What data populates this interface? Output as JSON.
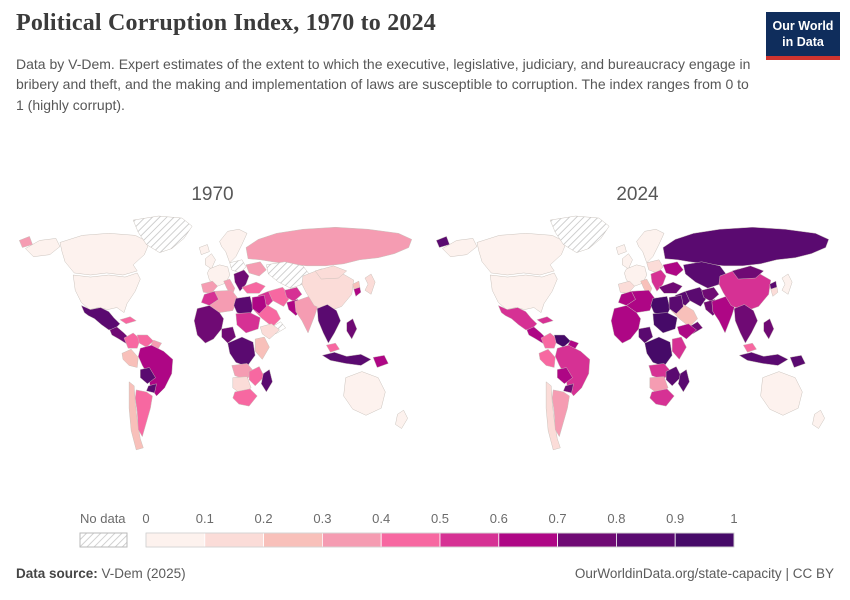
{
  "header": {
    "title": "Political Corruption Index, 1970 to 2024",
    "subtitle": "Data by V-Dem. Expert estimates of the extent to which the executive, legislative, judiciary, and bureaucracy engage in bribery and theft, and the making and implementation of laws are susceptible to corruption. The index ranges from 0 to 1 (highly corrupt).",
    "logo_line1": "Our World",
    "logo_line2": "in Data",
    "logo_bg": "#0f2d5c",
    "logo_accent": "#cf342f"
  },
  "chart_data": {
    "type": "heatmap",
    "subtype": "choropleth-world-map-pair",
    "metric": "Political Corruption Index",
    "scale_min": 0,
    "scale_max": 1,
    "years": [
      "1970",
      "2024"
    ],
    "legend": {
      "no_data_label": "No data",
      "tick_labels": [
        "0",
        "0.1",
        "0.2",
        "0.3",
        "0.4",
        "0.5",
        "0.6",
        "0.7",
        "0.8",
        "0.9",
        "1"
      ],
      "colors": [
        "#fdf2ee",
        "#fbdcd8",
        "#f8c0ba",
        "#f59cb2",
        "#f768a1",
        "#d63194",
        "#ae0685",
        "#6f0a74",
        "#5a0a70",
        "#460a68"
      ],
      "hatch_line_color": "#c9c9c9",
      "border_color": "#c2bab4"
    },
    "regions": [
      {
        "id": "canada",
        "label": "Canada",
        "values": {
          "1970": 0.05,
          "2024": 0.05
        }
      },
      {
        "id": "usa",
        "label": "United States",
        "values": {
          "1970": 0.07,
          "2024": 0.08
        }
      },
      {
        "id": "greenland",
        "label": "Greenland",
        "values": {
          "1970": null,
          "2024": null
        }
      },
      {
        "id": "chukotka",
        "label": "Russia (Chukotka)",
        "values": {
          "1970": 0.38,
          "2024": 0.85
        }
      },
      {
        "id": "iceland",
        "label": "Iceland",
        "values": {
          "1970": 0.03,
          "2024": 0.03
        }
      },
      {
        "id": "mexico",
        "label": "Mexico",
        "values": {
          "1970": 0.85,
          "2024": 0.55
        }
      },
      {
        "id": "central_america",
        "label": "Central America",
        "values": {
          "1970": 0.78,
          "2024": 0.68
        }
      },
      {
        "id": "cuba",
        "label": "Cuba & Caribbean",
        "values": {
          "1970": 0.45,
          "2024": 0.5
        }
      },
      {
        "id": "colombia",
        "label": "Colombia",
        "values": {
          "1970": 0.48,
          "2024": 0.45
        }
      },
      {
        "id": "venezuela",
        "label": "Venezuela",
        "values": {
          "1970": 0.45,
          "2024": 0.92
        }
      },
      {
        "id": "guyanas",
        "label": "Guyanas",
        "values": {
          "1970": 0.35,
          "2024": 0.65
        }
      },
      {
        "id": "peru",
        "label": "Peru & Ecuador",
        "values": {
          "1970": 0.25,
          "2024": 0.48
        }
      },
      {
        "id": "brazil",
        "label": "Brazil",
        "values": {
          "1970": 0.65,
          "2024": 0.52
        }
      },
      {
        "id": "chile",
        "label": "Chile",
        "values": {
          "1970": 0.22,
          "2024": 0.12
        }
      },
      {
        "id": "argentina",
        "label": "Argentina",
        "values": {
          "1970": 0.48,
          "2024": 0.32
        }
      },
      {
        "id": "bolivia",
        "label": "Bolivia",
        "values": {
          "1970": 0.85,
          "2024": 0.62
        }
      },
      {
        "id": "paraguay",
        "label": "Paraguay",
        "values": {
          "1970": 0.82,
          "2024": 0.78
        }
      },
      {
        "id": "uk",
        "label": "United Kingdom",
        "values": {
          "1970": 0.04,
          "2024": 0.05
        }
      },
      {
        "id": "scandinavia",
        "label": "Scandinavia",
        "values": {
          "1970": 0.02,
          "2024": 0.02
        }
      },
      {
        "id": "west_europe",
        "label": "Western Europe",
        "values": {
          "1970": 0.06,
          "2024": 0.06
        }
      },
      {
        "id": "iberia",
        "label": "Spain & Portugal",
        "values": {
          "1970": 0.38,
          "2024": 0.12
        }
      },
      {
        "id": "italy",
        "label": "Italy",
        "values": {
          "1970": 0.32,
          "2024": 0.22
        }
      },
      {
        "id": "central_europe",
        "label": "Central Europe",
        "values": {
          "1970": null,
          "2024": 0.15
        }
      },
      {
        "id": "balkans",
        "label": "Balkans",
        "values": {
          "1970": 0.72,
          "2024": 0.55
        }
      },
      {
        "id": "ukraine",
        "label": "Ukraine & Belarus",
        "values": {
          "1970": 0.35,
          "2024": 0.62
        }
      },
      {
        "id": "russia",
        "label": "Russia",
        "values": {
          "1970": 0.38,
          "2024": 0.85
        }
      },
      {
        "id": "central_asia",
        "label": "Central Asia",
        "values": {
          "1970": null,
          "2024": 0.82
        }
      },
      {
        "id": "turkey",
        "label": "Turkey",
        "values": {
          "1970": 0.42,
          "2024": 0.78
        }
      },
      {
        "id": "levant",
        "label": "Levant & Iraq",
        "values": {
          "1970": 0.58,
          "2024": 0.85
        }
      },
      {
        "id": "saudi",
        "label": "Saudi Arabia",
        "values": {
          "1970": 0.42,
          "2024": 0.28
        }
      },
      {
        "id": "yemen",
        "label": "Yemen & Oman",
        "values": {
          "1970": null,
          "2024": 0.72
        }
      },
      {
        "id": "iran",
        "label": "Iran",
        "values": {
          "1970": 0.42,
          "2024": 0.8
        }
      },
      {
        "id": "afghanistan",
        "label": "Afghanistan",
        "values": {
          "1970": 0.55,
          "2024": 0.78
        }
      },
      {
        "id": "pakistan",
        "label": "Pakistan",
        "values": {
          "1970": 0.62,
          "2024": 0.7
        }
      },
      {
        "id": "india",
        "label": "India",
        "values": {
          "1970": 0.38,
          "2024": 0.65
        }
      },
      {
        "id": "china",
        "label": "China",
        "values": {
          "1970": 0.18,
          "2024": 0.57
        }
      },
      {
        "id": "mongolia",
        "label": "Mongolia",
        "values": {
          "1970": 0.18,
          "2024": 0.72
        }
      },
      {
        "id": "north_korea",
        "label": "North Korea",
        "values": {
          "1970": 0.2,
          "2024": 0.82
        }
      },
      {
        "id": "south_korea",
        "label": "South Korea",
        "values": {
          "1970": 0.6,
          "2024": 0.1
        }
      },
      {
        "id": "japan",
        "label": "Japan",
        "values": {
          "1970": 0.15,
          "2024": 0.05
        }
      },
      {
        "id": "se_asia",
        "label": "Mainland Southeast Asia",
        "values": {
          "1970": 0.85,
          "2024": 0.78
        }
      },
      {
        "id": "malaysia",
        "label": "Malaysia",
        "values": {
          "1970": 0.45,
          "2024": 0.45
        }
      },
      {
        "id": "indonesia",
        "label": "Indonesia",
        "values": {
          "1970": 0.85,
          "2024": 0.8
        }
      },
      {
        "id": "philippines",
        "label": "Philippines",
        "values": {
          "1970": 0.75,
          "2024": 0.75
        }
      },
      {
        "id": "png",
        "label": "Papua New Guinea",
        "values": {
          "1970": 0.62,
          "2024": 0.85
        }
      },
      {
        "id": "australia",
        "label": "Australia",
        "values": {
          "1970": 0.05,
          "2024": 0.06
        }
      },
      {
        "id": "new_zealand",
        "label": "New Zealand",
        "values": {
          "1970": 0.02,
          "2024": 0.02
        }
      },
      {
        "id": "morocco",
        "label": "Morocco",
        "values": {
          "1970": 0.55,
          "2024": 0.6
        }
      },
      {
        "id": "algeria",
        "label": "Algeria & Tunisia",
        "values": {
          "1970": 0.38,
          "2024": 0.65
        }
      },
      {
        "id": "libya",
        "label": "Libya",
        "values": {
          "1970": 0.82,
          "2024": 0.9
        }
      },
      {
        "id": "egypt",
        "label": "Egypt",
        "values": {
          "1970": 0.68,
          "2024": 0.85
        }
      },
      {
        "id": "west_africa",
        "label": "West Africa",
        "values": {
          "1970": 0.78,
          "2024": 0.62
        }
      },
      {
        "id": "nigeria",
        "label": "Nigeria",
        "values": {
          "1970": 0.72,
          "2024": 0.85
        }
      },
      {
        "id": "sahel",
        "label": "Chad & Sudan",
        "values": {
          "1970": 0.58,
          "2024": 0.9
        }
      },
      {
        "id": "horn",
        "label": "Horn of Africa",
        "values": {
          "1970": 0.12,
          "2024": 0.62
        }
      },
      {
        "id": "central_africa",
        "label": "Central Africa",
        "values": {
          "1970": 0.85,
          "2024": 0.9
        }
      },
      {
        "id": "east_africa",
        "label": "East Africa",
        "values": {
          "1970": 0.25,
          "2024": 0.55
        }
      },
      {
        "id": "angola",
        "label": "Angola & Zambia",
        "values": {
          "1970": 0.32,
          "2024": 0.52
        }
      },
      {
        "id": "zimbabwe",
        "label": "Zimbabwe & Mozambique",
        "values": {
          "1970": 0.42,
          "2024": 0.8
        }
      },
      {
        "id": "namibia",
        "label": "Namibia & Botswana",
        "values": {
          "1970": 0.15,
          "2024": 0.35
        }
      },
      {
        "id": "south_africa",
        "label": "South Africa",
        "values": {
          "1970": 0.48,
          "2024": 0.55
        }
      },
      {
        "id": "madagascar",
        "label": "Madagascar",
        "values": {
          "1970": 0.85,
          "2024": 0.8
        }
      }
    ]
  },
  "footer": {
    "source_label": "Data source:",
    "source_value": "V-Dem (2025)",
    "link": "OurWorldinData.org/state-capacity",
    "divider": "|",
    "license": "CC BY"
  }
}
